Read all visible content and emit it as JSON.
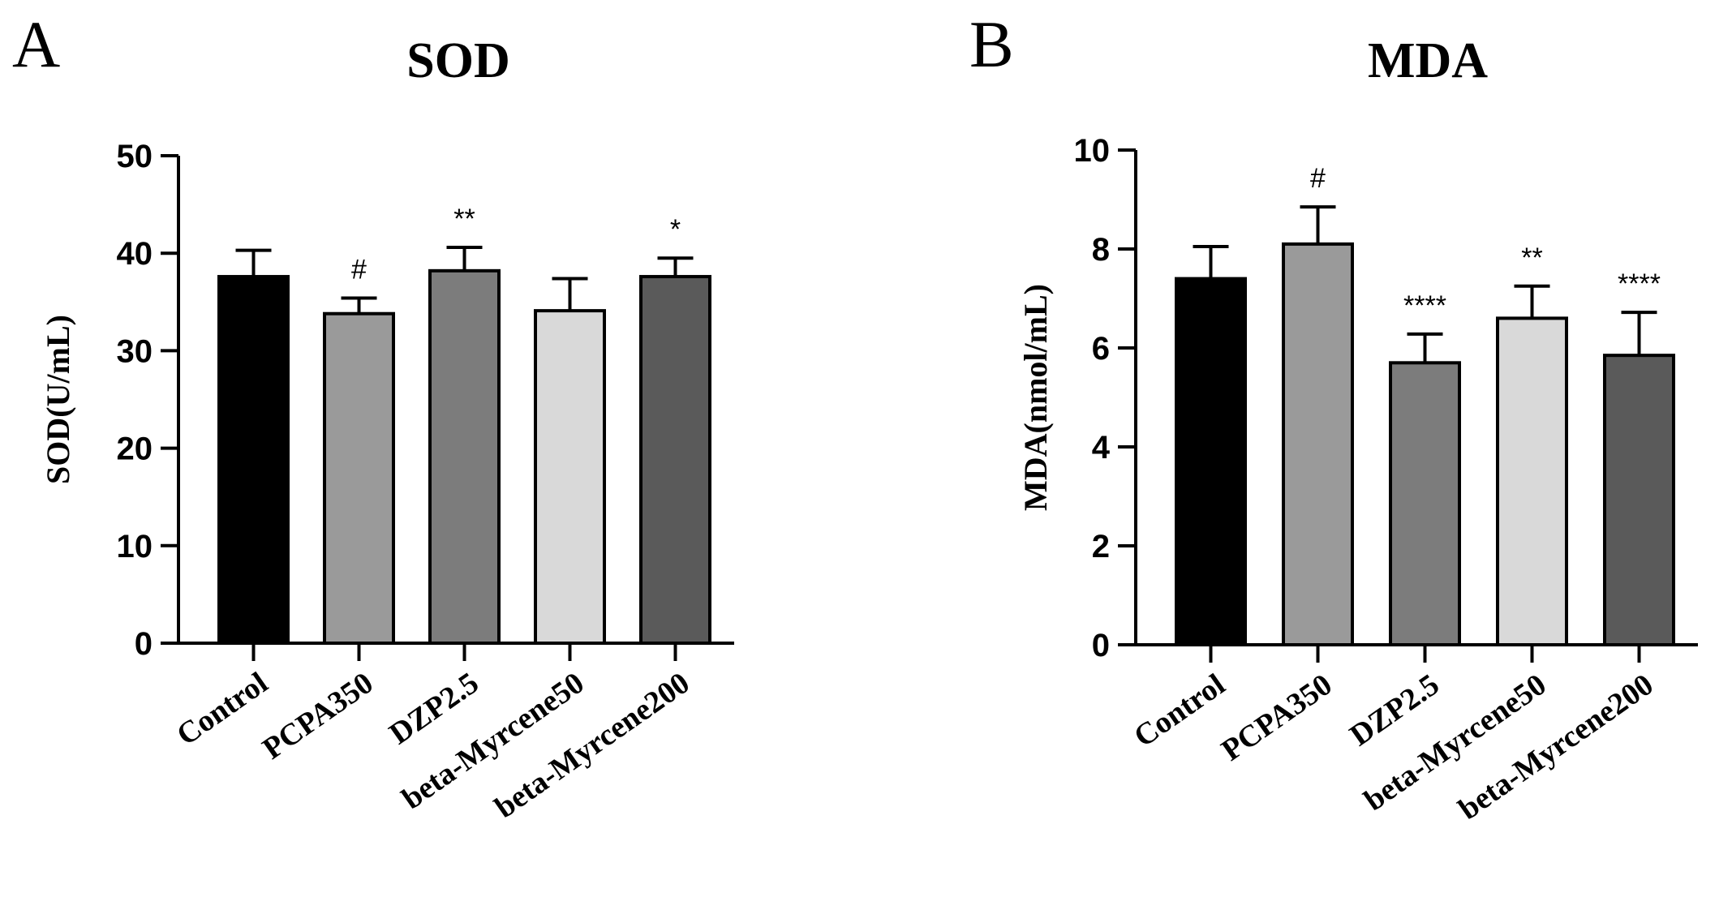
{
  "chart_data": [
    {
      "panel": "A",
      "type": "bar",
      "title": "SOD",
      "ylabel": "SOD(U/mL)",
      "xlabel": "",
      "ylim": [
        0,
        50
      ],
      "yticks": [
        0,
        10,
        20,
        30,
        40,
        50
      ],
      "categories": [
        "Control",
        "PCPA350",
        "DZP2.5",
        "beta-Myrcene50",
        "beta-Myrcene200"
      ],
      "values": [
        37.6,
        33.8,
        38.2,
        34.1,
        37.6
      ],
      "errors": [
        2.7,
        1.6,
        2.4,
        3.3,
        1.9
      ],
      "annotations": [
        "",
        "#",
        "**",
        "",
        "*"
      ],
      "colors": [
        "#000000",
        "#9a9a9a",
        "#7c7c7c",
        "#d9d9d9",
        "#5a5a5a"
      ]
    },
    {
      "panel": "B",
      "type": "bar",
      "title": "MDA",
      "ylabel": "MDA(nmol/mL)",
      "xlabel": "",
      "ylim": [
        0,
        10
      ],
      "yticks": [
        0,
        2,
        4,
        6,
        8,
        10
      ],
      "categories": [
        "Control",
        "PCPA350",
        "DZP2.5",
        "beta-Myrcene50",
        "beta-Myrcene200"
      ],
      "values": [
        7.4,
        8.1,
        5.7,
        6.6,
        5.85
      ],
      "errors": [
        0.65,
        0.75,
        0.58,
        0.65,
        0.87
      ],
      "annotations": [
        "",
        "#",
        "****",
        "**",
        "****"
      ],
      "colors": [
        "#000000",
        "#9a9a9a",
        "#7c7c7c",
        "#d9d9d9",
        "#5a5a5a"
      ]
    }
  ]
}
